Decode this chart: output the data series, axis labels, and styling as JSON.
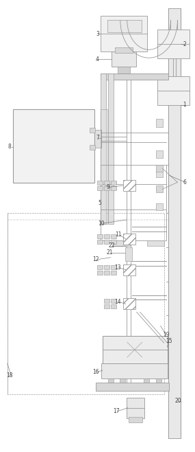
{
  "bg_color": "#ffffff",
  "lc": "#999999",
  "lw": 0.6,
  "fig_width": 2.85,
  "fig_height": 6.58,
  "dpi": 100
}
